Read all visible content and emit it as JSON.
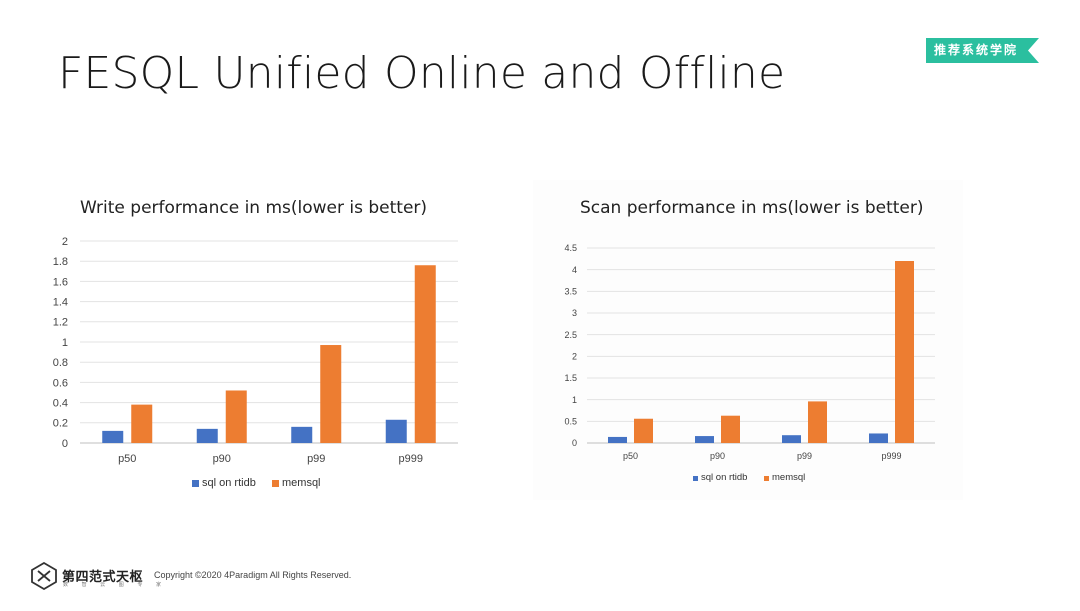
{
  "slide": {
    "title": "FESQL Unified Online and Offline",
    "badge": "推荐系统学院",
    "footer_brand": "第四范式天枢",
    "footer_sub": "数 智 云 图 专 家",
    "copyright": "Copyright ©2020 4Paradigm All Rights Reserved."
  },
  "colors": {
    "sql_on_rtidb": "#4472c4",
    "memsql": "#ed7d31",
    "badge": "#2bbf9f"
  },
  "chart_data": [
    {
      "type": "bar",
      "title": "Write performance in ms(lower is better)",
      "categories": [
        "p50",
        "p90",
        "p99",
        "p999"
      ],
      "series": [
        {
          "name": "sql on rtidb",
          "values": [
            0.12,
            0.14,
            0.16,
            0.23
          ]
        },
        {
          "name": "memsql",
          "values": [
            0.38,
            0.52,
            0.97,
            1.76
          ]
        }
      ],
      "ylim": [
        0,
        2
      ],
      "yticks": [
        "0",
        "0.2",
        "0.4",
        "0.6",
        "0.8",
        "1",
        "1.2",
        "1.4",
        "1.6",
        "1.8",
        "2"
      ],
      "grid": true,
      "legend": "bottom"
    },
    {
      "type": "bar",
      "title": "Scan performance in ms(lower is better)",
      "categories": [
        "p50",
        "p90",
        "p99",
        "p999"
      ],
      "series": [
        {
          "name": "sql on rtidb",
          "values": [
            0.14,
            0.16,
            0.18,
            0.22
          ]
        },
        {
          "name": "memsql",
          "values": [
            0.56,
            0.63,
            0.96,
            4.2
          ]
        }
      ],
      "ylim": [
        0,
        4.5
      ],
      "yticks": [
        "0",
        "0.5",
        "1",
        "1.5",
        "2",
        "2.5",
        "3",
        "3.5",
        "4",
        "4.5"
      ],
      "grid": true,
      "legend": "bottom"
    }
  ]
}
